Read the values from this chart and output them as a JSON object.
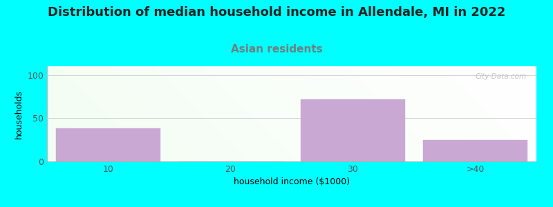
{
  "title": "Distribution of median household income in Allendale, MI in 2022",
  "subtitle": "Asian residents",
  "xlabel": "household income ($1000)",
  "ylabel": "households",
  "categories": [
    "10",
    "20",
    "30",
    ">40"
  ],
  "values": [
    38,
    0,
    72,
    25
  ],
  "bar_color": "#C9A8D4",
  "bar_edgecolor": "#C9A8D4",
  "ylim": [
    0,
    110
  ],
  "yticks": [
    0,
    50,
    100
  ],
  "background_color": "#00FFFF",
  "grid_color": "#CCCCCC",
  "title_fontsize": 13,
  "title_color": "#222222",
  "subtitle_fontsize": 11,
  "subtitle_color": "#6E8080",
  "axis_label_fontsize": 9,
  "tick_fontsize": 9,
  "watermark_text": "‹ City-Data.com",
  "watermark_color": "#AAAAAA"
}
